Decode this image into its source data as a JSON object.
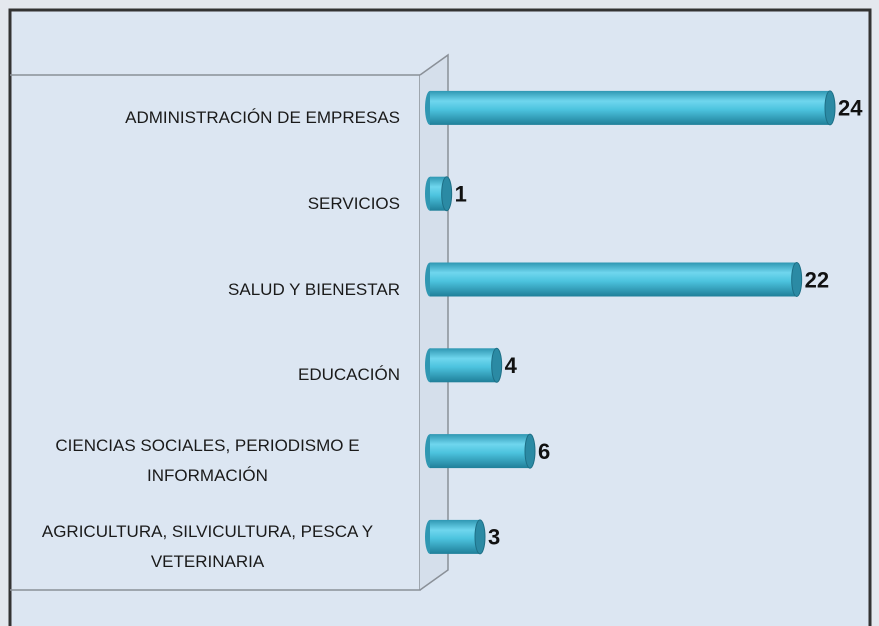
{
  "chart_data": {
    "type": "bar",
    "orientation": "horizontal",
    "categories": [
      "ADMINISTRACIÓN DE EMPRESAS",
      "SERVICIOS",
      "SALUD Y BIENESTAR",
      "EDUCACIÓN",
      "CIENCIAS SOCIALES, PERIODISMO E INFORMACIÓN",
      "AGRICULTURA, SILVICULTURA, PESCA Y VETERINARIA"
    ],
    "values": [
      24,
      1,
      22,
      4,
      6,
      3
    ],
    "color": "#4cc3de",
    "xlim": [
      0,
      24
    ]
  }
}
